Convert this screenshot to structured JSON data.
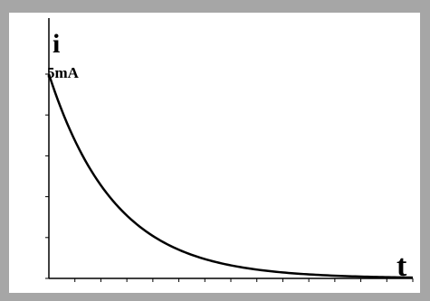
{
  "chart_data": {
    "type": "line",
    "title": "",
    "xlabel": "t",
    "ylabel": "i",
    "annotation": "5mA",
    "peak_value": 5,
    "decay_curve": "exponential",
    "x_tick_count": 14,
    "y_tick_count": 6,
    "grid": false,
    "colors": {
      "line": "#000000",
      "axis": "#000000",
      "background": "#ffffff",
      "border": "#a6a6a6"
    }
  }
}
